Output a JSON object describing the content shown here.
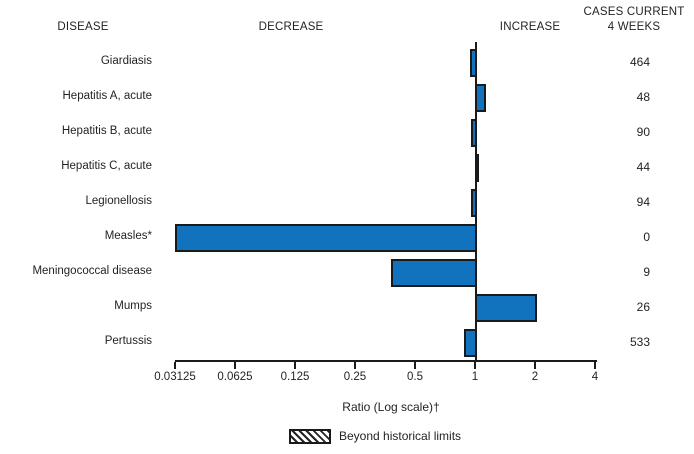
{
  "header": {
    "disease": "DISEASE",
    "decrease": "DECREASE",
    "increase": "INCREASE",
    "cases_line1": "CASES CURRENT",
    "cases_line2": "4 WEEKS"
  },
  "chart_data": {
    "type": "bar",
    "orientation": "horizontal",
    "scale": "log",
    "title": "",
    "xlabel": "Ratio (Log scale)†",
    "axis": {
      "label": "Ratio (Log scale)†",
      "tick_labels": [
        "0.03125",
        "0.0625",
        "0.125",
        "0.25",
        "0.5",
        "1",
        "2",
        "4"
      ],
      "tick_values": [
        0.03125,
        0.0625,
        0.125,
        0.25,
        0.5,
        1,
        2,
        4
      ],
      "range": [
        0.03125,
        4
      ],
      "baseline_ratio": 1
    },
    "rows": [
      {
        "disease": "Giardiasis",
        "ratio": 0.94,
        "cases": "464",
        "beyond_historical_limits": false
      },
      {
        "disease": "Hepatitis A, acute",
        "ratio": 1.14,
        "cases": "48",
        "beyond_historical_limits": false
      },
      {
        "disease": "Hepatitis B, acute",
        "ratio": 0.96,
        "cases": "90",
        "beyond_historical_limits": false
      },
      {
        "disease": "Hepatitis C, acute",
        "ratio": 1.04,
        "cases": "44",
        "beyond_historical_limits": false
      },
      {
        "disease": "Legionellosis",
        "ratio": 0.96,
        "cases": "94",
        "beyond_historical_limits": false
      },
      {
        "disease": "Measles*",
        "ratio": 0.03125,
        "cases": "0",
        "beyond_historical_limits": false
      },
      {
        "disease": "Meningococcal disease",
        "ratio": 0.38,
        "cases": "9",
        "beyond_historical_limits": false
      },
      {
        "disease": "Mumps",
        "ratio": 2.05,
        "cases": "26",
        "beyond_historical_limits": false
      },
      {
        "disease": "Pertussis",
        "ratio": 0.88,
        "cases": "533",
        "beyond_historical_limits": false
      }
    ],
    "legend": {
      "label": "Beyond historical limits",
      "swatch": "diagonal-hatch"
    },
    "colors": {
      "bar_fill": "#1173bd",
      "bar_border": "#1a1a1a",
      "axis": "#1a1a1a",
      "text": "#231f20"
    }
  }
}
